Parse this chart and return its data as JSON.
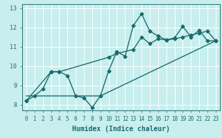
{
  "xlabel": "Humidex (Indice chaleur)",
  "bg_color": "#c8eeee",
  "grid_color": "#ffffff",
  "line_color": "#1a6b6b",
  "xlim": [
    -0.5,
    23.5
  ],
  "ylim": [
    7.7,
    13.2
  ],
  "yticks": [
    8,
    9,
    10,
    11,
    12,
    13
  ],
  "xticks": [
    0,
    1,
    2,
    3,
    4,
    5,
    6,
    7,
    8,
    9,
    10,
    11,
    12,
    13,
    14,
    15,
    16,
    17,
    18,
    19,
    20,
    21,
    22,
    23
  ],
  "series1_x": [
    0,
    1,
    2,
    3,
    4,
    5,
    6,
    7,
    8,
    9,
    10,
    11,
    12,
    13,
    14,
    15,
    16,
    17,
    18,
    19,
    20,
    21,
    22,
    23
  ],
  "series1_y": [
    8.2,
    8.45,
    8.8,
    9.7,
    9.7,
    9.5,
    8.45,
    8.35,
    7.85,
    8.45,
    9.75,
    10.75,
    10.5,
    12.1,
    12.7,
    11.8,
    11.55,
    11.35,
    11.45,
    12.05,
    11.5,
    11.85,
    11.3,
    11.3
  ],
  "series2_x": [
    0,
    9,
    23
  ],
  "series2_y": [
    8.45,
    8.45,
    11.3
  ],
  "series3_x": [
    0,
    3,
    4,
    10,
    11,
    13,
    14,
    15,
    16,
    17,
    18,
    19,
    20,
    21,
    22,
    23
  ],
  "series3_y": [
    8.2,
    9.7,
    9.7,
    10.45,
    10.65,
    10.85,
    11.5,
    11.15,
    11.4,
    11.35,
    11.4,
    11.5,
    11.6,
    11.7,
    11.8,
    11.3
  ],
  "marker": "D",
  "marker_size": 2.5,
  "linewidth": 1.0
}
